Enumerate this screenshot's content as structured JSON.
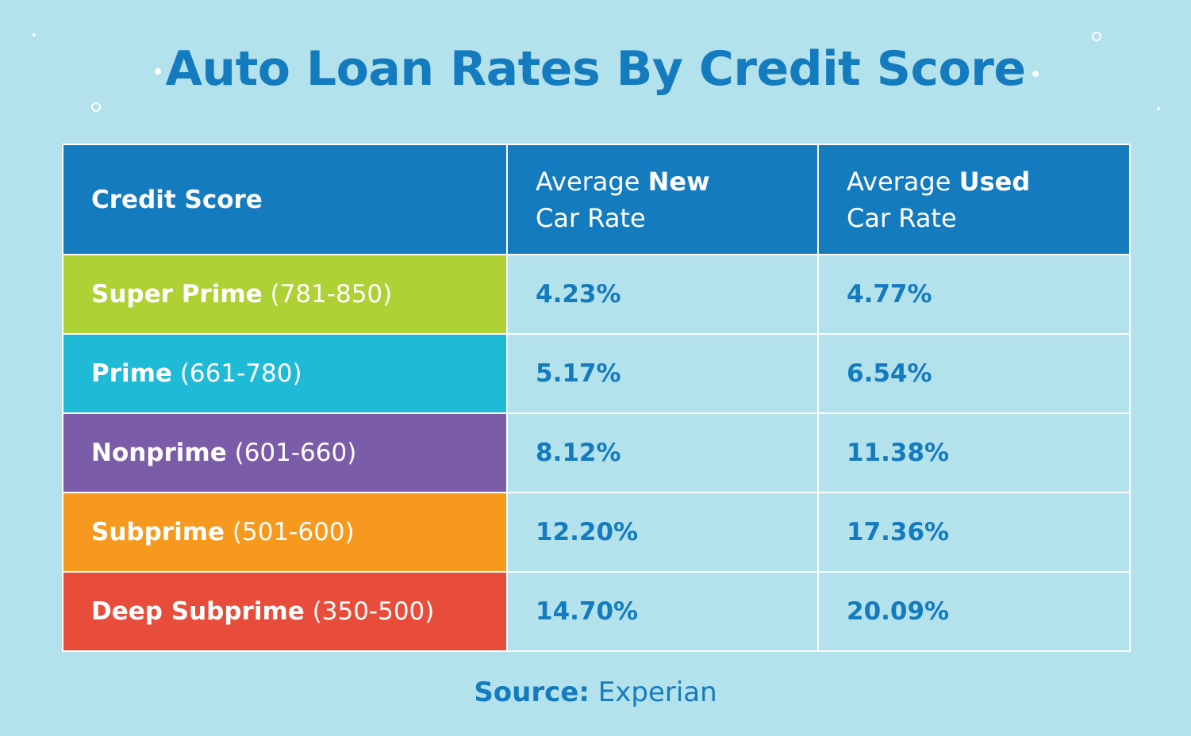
{
  "chart_data": {
    "type": "table",
    "title": "Auto Loan Rates By Credit Score",
    "columns": {
      "credit_score": "Credit Score",
      "new": {
        "prefix": "Average ",
        "bold": "New",
        "suffix": "Car Rate"
      },
      "used": {
        "prefix": "Average ",
        "bold": "Used",
        "suffix": "Car Rate"
      }
    },
    "rows": [
      {
        "tier": "Super Prime",
        "range": "(781-850)",
        "new_rate": "4.23%",
        "used_rate": "4.77%",
        "color": "#aed136"
      },
      {
        "tier": "Prime",
        "range": "(661-780)",
        "new_rate": "5.17%",
        "used_rate": "6.54%",
        "color": "#1fbad6"
      },
      {
        "tier": "Nonprime",
        "range": "(601-660)",
        "new_rate": "8.12%",
        "used_rate": "11.38%",
        "color": "#7b5ca8"
      },
      {
        "tier": "Subprime",
        "range": "(501-600)",
        "new_rate": "12.20%",
        "used_rate": "17.36%",
        "color": "#f7981f"
      },
      {
        "tier": "Deep Subprime",
        "range": "(350-500)",
        "new_rate": "14.70%",
        "used_rate": "20.09%",
        "color": "#e84c3b"
      }
    ],
    "source_label": "Source:",
    "source_value": "Experian"
  },
  "colors": {
    "background": "#b3e1ec",
    "header": "#147bbf",
    "accent_text": "#147bbf"
  }
}
